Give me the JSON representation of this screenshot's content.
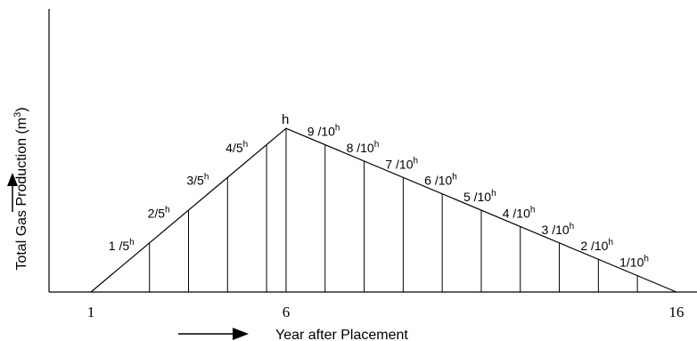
{
  "chart_data": {
    "type": "area",
    "ylabel": "Total Gas Production (m",
    "ylabel_superscript": "3",
    "ylabel_suffix": ")",
    "xlabel": "Year after Placement",
    "x_ticks": [
      "1",
      "6",
      "16"
    ],
    "xlim": [
      1,
      17.6
    ],
    "ylim": [
      0,
      1.73
    ],
    "shape": "triangle",
    "peak": {
      "x": 6,
      "y": 1,
      "label": "h"
    },
    "rising_dividers": [
      2.5,
      3.5,
      4.5,
      5.5
    ],
    "falling_dividers": [
      7,
      8,
      9,
      10,
      11,
      12,
      13,
      14,
      15
    ],
    "bar_labels": [
      {
        "x": 2,
        "value": 0.2,
        "fraction": "1 /5",
        "sup": "h"
      },
      {
        "x": 3,
        "value": 0.4,
        "fraction": "2/5",
        "sup": "h"
      },
      {
        "x": 4,
        "value": 0.6,
        "fraction": "3/5",
        "sup": "h"
      },
      {
        "x": 5,
        "value": 0.8,
        "fraction": "4/5",
        "sup": "h"
      },
      {
        "x": 7,
        "value": 0.9,
        "fraction": "9 /10",
        "sup": "h"
      },
      {
        "x": 8,
        "value": 0.8,
        "fraction": "8 /10",
        "sup": "h"
      },
      {
        "x": 9,
        "value": 0.7,
        "fraction": "7 /10",
        "sup": "h"
      },
      {
        "x": 10,
        "value": 0.6,
        "fraction": "6 /10",
        "sup": "h"
      },
      {
        "x": 11,
        "value": 0.5,
        "fraction": "5 /10",
        "sup": "h"
      },
      {
        "x": 12,
        "value": 0.4,
        "fraction": "4 /10",
        "sup": "h"
      },
      {
        "x": 13,
        "value": 0.3,
        "fraction": "3 /10",
        "sup": "h"
      },
      {
        "x": 14,
        "value": 0.2,
        "fraction": "2 /10",
        "sup": "h"
      },
      {
        "x": 15,
        "value": 0.1,
        "fraction": "1/10",
        "sup": "h"
      }
    ],
    "y_arrow": "up",
    "x_arrow": "right",
    "grid": false,
    "line_color": "#000000"
  }
}
